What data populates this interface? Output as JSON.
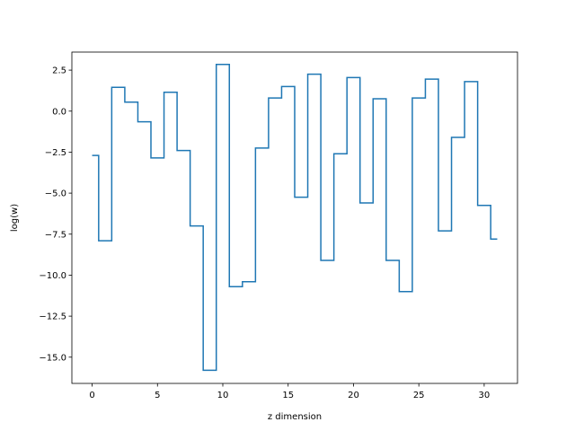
{
  "chart_data": {
    "type": "line",
    "drawstyle": "steps-mid",
    "title": "",
    "xlabel": "z dimension",
    "ylabel": "log(w)",
    "xlim": [
      -1.55,
      32.55
    ],
    "ylim": [
      -16.6,
      3.6
    ],
    "grid": false,
    "xticks": [
      0,
      5,
      10,
      15,
      20,
      25,
      30
    ],
    "xtick_labels": [
      "0",
      "5",
      "10",
      "15",
      "20",
      "25",
      "30"
    ],
    "yticks": [
      2.5,
      0.0,
      -2.5,
      -5.0,
      -7.5,
      -10.0,
      -12.5,
      -15.0
    ],
    "ytick_labels": [
      "2.5",
      "0.0",
      "−2.5",
      "−5.0",
      "−7.5",
      "−10.0",
      "−12.5",
      "−15.0"
    ],
    "series": [
      {
        "color": "#1f77b4",
        "x": [
          0,
          1,
          2,
          3,
          4,
          5,
          6,
          7,
          8,
          9,
          10,
          11,
          12,
          13,
          14,
          15,
          16,
          17,
          18,
          19,
          20,
          21,
          22,
          23,
          24,
          25,
          26,
          27,
          28,
          29,
          30,
          31
        ],
        "values": [
          -2.7,
          -7.9,
          1.45,
          0.55,
          -0.65,
          -2.85,
          1.15,
          -2.4,
          -7.0,
          -15.8,
          2.85,
          -10.7,
          -10.4,
          -2.25,
          0.8,
          1.5,
          -5.25,
          2.25,
          -9.1,
          -2.6,
          2.05,
          -5.6,
          0.75,
          -9.1,
          -11.0,
          0.8,
          1.95,
          -7.3,
          -1.6,
          1.8,
          -5.75,
          -7.8
        ]
      }
    ]
  }
}
